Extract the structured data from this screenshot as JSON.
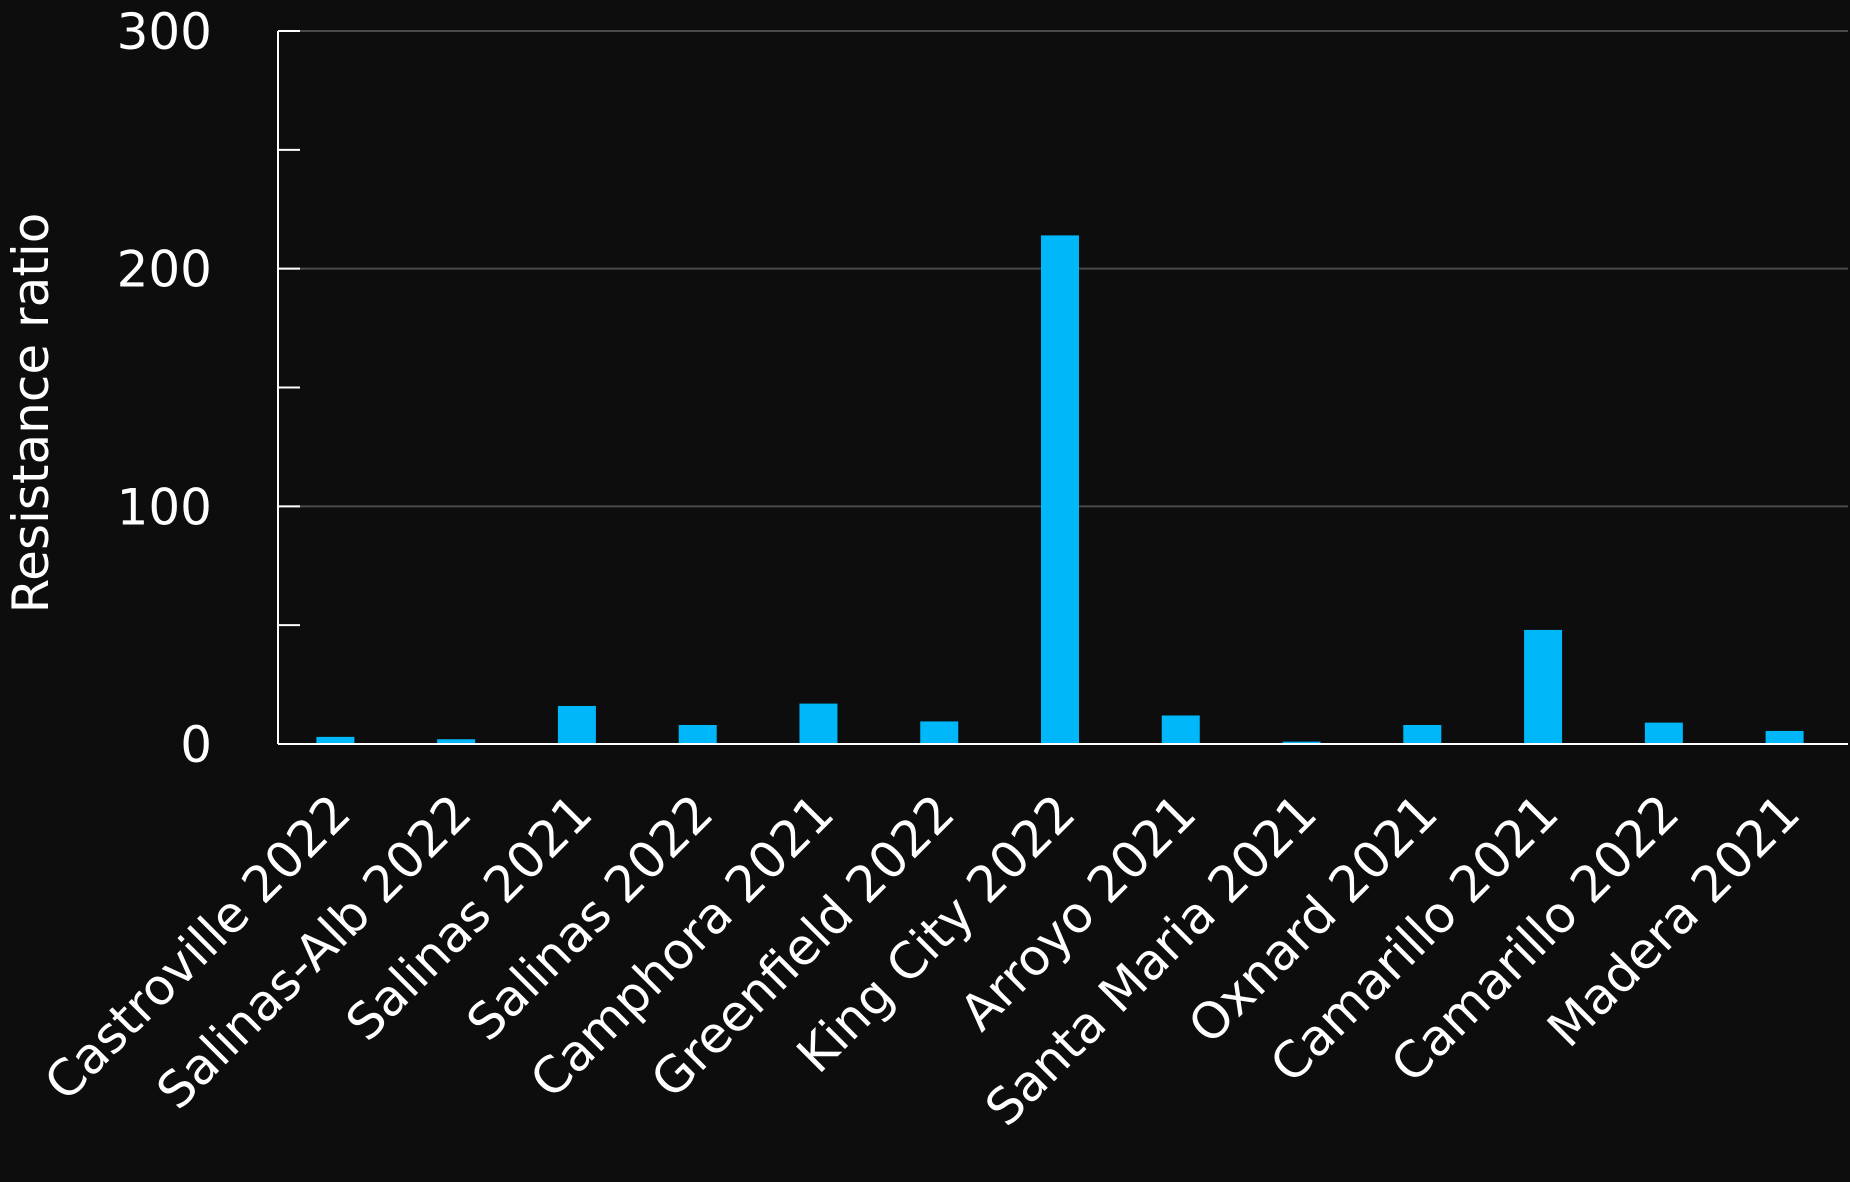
{
  "chart_data": {
    "type": "bar",
    "title": "",
    "xlabel": "",
    "ylabel": "Resistance ratio",
    "ylim": [
      0,
      300
    ],
    "yticks": [
      0,
      100,
      200,
      300
    ],
    "grid": true,
    "categories": [
      "Castroville 2022",
      "Salinas-Alb 2022",
      "Salinas 2021",
      "Salinas 2022",
      "Camphora 2021",
      "Greenfield 2022",
      "King City 2022",
      "Arroyo 2021",
      "Santa Maria 2021",
      "Oxnard 2021",
      "Camarillo 2021",
      "Camarillo 2022",
      "Madera 2021"
    ],
    "values": [
      3,
      2,
      16,
      8,
      17,
      9.5,
      214,
      12,
      1,
      8,
      48,
      9,
      5.5
    ]
  },
  "colors": {
    "background": "#0d0d0d",
    "bar": "#00b7f9",
    "text": "#ffffff",
    "gridline": "#4a4a4a",
    "axis": "#ffffff"
  }
}
